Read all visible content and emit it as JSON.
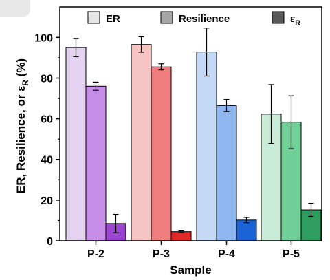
{
  "chart_data": {
    "type": "bar",
    "xlabel": "Sample",
    "ylabel_parts": [
      "ER, Resilience, or ε",
      "R",
      " (%)"
    ],
    "ylim": [
      0,
      115
    ],
    "yticks": [
      "0",
      "20",
      "40",
      "60",
      "80",
      "100"
    ],
    "legend_position": "top",
    "categories": [
      "P-2",
      "P-3",
      "P-4",
      "P-5"
    ],
    "series": [
      {
        "name": "ER",
        "legend_main": "ER",
        "legend_sub": "",
        "values": [
          95,
          96.5,
          92.8,
          62.3
        ],
        "errors": [
          4.5,
          3.8,
          11.8,
          14.5
        ],
        "legend_color": "#e6e6e6"
      },
      {
        "name": "Resilience",
        "legend_main": "Resilience",
        "legend_sub": "",
        "values": [
          76,
          85.5,
          66.5,
          58.3
        ],
        "errors": [
          2,
          1.5,
          3,
          13
        ],
        "legend_color": "#a6a6a6"
      },
      {
        "name": "εR",
        "legend_main": "ε",
        "legend_sub": "R",
        "values": [
          8.5,
          4.5,
          10.2,
          15.2
        ],
        "errors": [
          4.5,
          0.4,
          1.3,
          3.2
        ],
        "legend_color": "#595959"
      }
    ],
    "colors": [
      [
        "#e3d2f0",
        "#c68ee6",
        "#9b45d1"
      ],
      [
        "#f7c4c4",
        "#f07d7d",
        "#e02828"
      ],
      [
        "#c3d9f5",
        "#8fb6ee",
        "#1b63d4"
      ],
      [
        "#c9ecd6",
        "#6fcf96",
        "#2e9e5e"
      ]
    ]
  }
}
